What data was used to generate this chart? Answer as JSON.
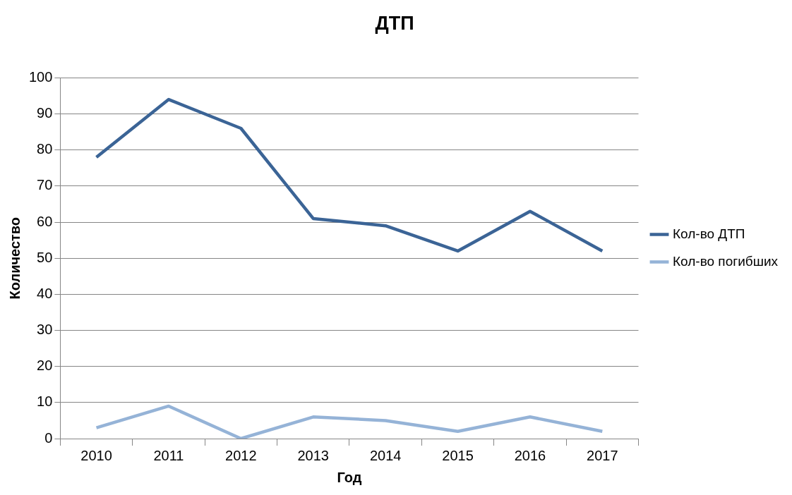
{
  "chart_data": {
    "type": "line",
    "title": "ДТП",
    "xlabel": "Год",
    "ylabel": "Количество",
    "categories": [
      "2010",
      "2011",
      "2012",
      "2013",
      "2014",
      "2015",
      "2016",
      "2017"
    ],
    "series": [
      {
        "name": "Кол-во ДТП",
        "color": "#3b6496",
        "values": [
          78,
          94,
          86,
          61,
          59,
          52,
          63,
          52
        ]
      },
      {
        "name": "Кол-во погибших",
        "color": "#95b3d7",
        "values": [
          3,
          9,
          0,
          6,
          5,
          2,
          6,
          2
        ]
      }
    ],
    "ylim": [
      0,
      100
    ],
    "yticks": [
      0,
      10,
      20,
      30,
      40,
      50,
      60,
      70,
      80,
      90,
      100
    ],
    "grid": "y",
    "legend": "right",
    "marker": "none",
    "line_style": "solid"
  }
}
